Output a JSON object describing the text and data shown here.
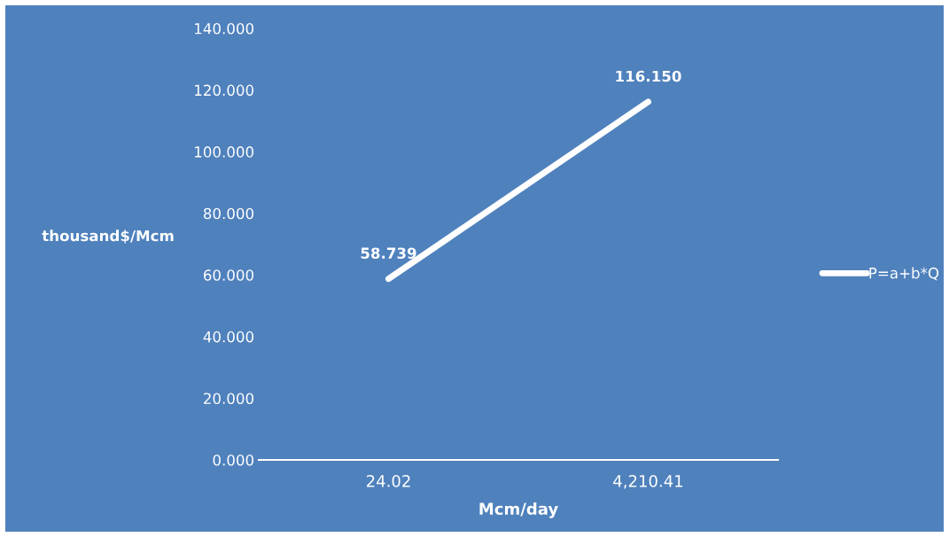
{
  "chart_data": {
    "type": "line",
    "xlabel": "Mcm/day",
    "ylabel": "thousand$/Mcm",
    "categories": [
      "24.02",
      "4,210.41"
    ],
    "series": [
      {
        "name": "P=a+b*Q",
        "color": "#ffffff",
        "values": [
          58.739,
          116.15
        ],
        "value_labels": [
          "58.739",
          "116.150"
        ]
      }
    ],
    "ylim": [
      0,
      140
    ],
    "yticks": [
      {
        "value": 0,
        "label": "0.000"
      },
      {
        "value": 20,
        "label": "20.000"
      },
      {
        "value": 40,
        "label": "40.000"
      },
      {
        "value": 60,
        "label": "60.000"
      },
      {
        "value": 80,
        "label": "80.000"
      },
      {
        "value": 100,
        "label": "100.000"
      },
      {
        "value": 120,
        "label": "120.000"
      },
      {
        "value": 140,
        "label": "140.000"
      }
    ],
    "grid": false,
    "legend": "right",
    "marker": "none",
    "line_style": "solid"
  }
}
